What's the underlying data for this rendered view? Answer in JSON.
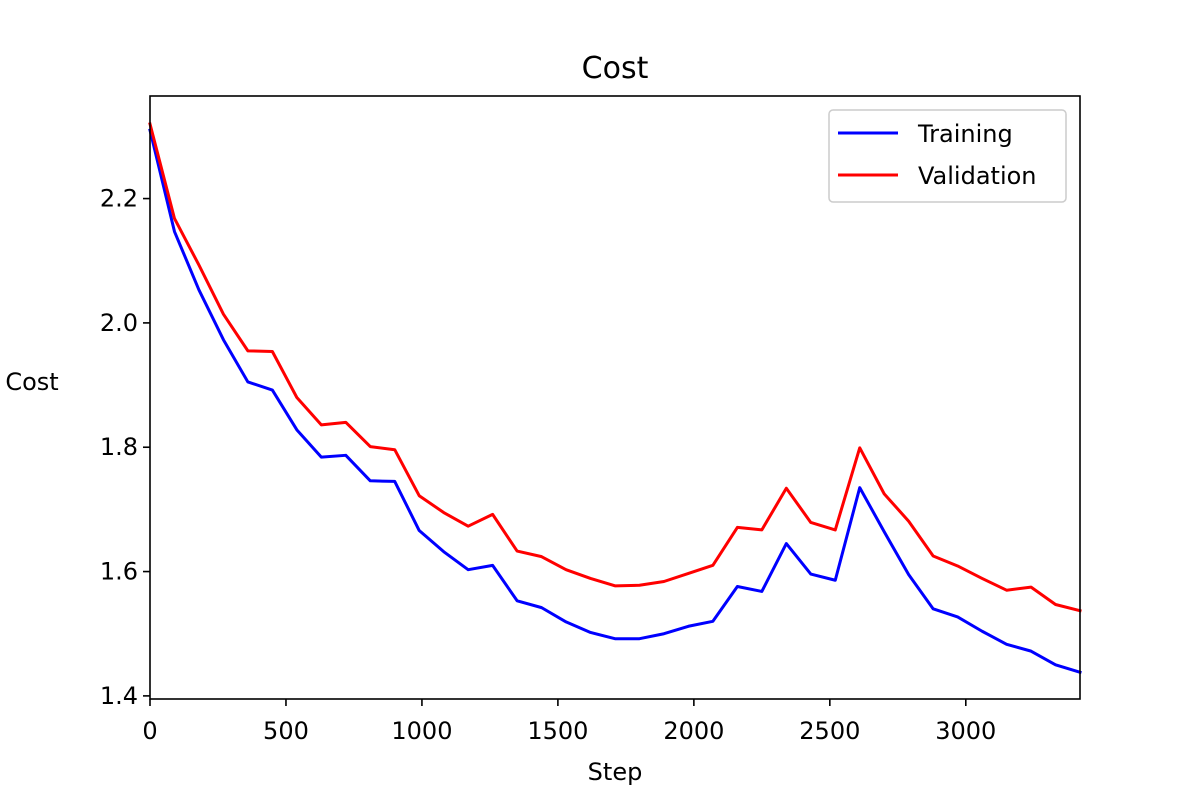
{
  "chart_data": {
    "type": "line",
    "title": "Cost",
    "xlabel": "Step",
    "ylabel": "Cost",
    "xlim": [
      0,
      3420
    ],
    "ylim": [
      1.395,
      2.365
    ],
    "xticks": [
      0,
      500,
      1000,
      1500,
      2000,
      2500,
      3000
    ],
    "yticks": [
      1.4,
      1.6,
      1.8,
      2.0,
      2.2
    ],
    "ytick_labels": [
      "1.4",
      "1.6",
      "1.8",
      "2.0",
      "2.2"
    ],
    "grid": false,
    "legend_position": "top-right",
    "x": [
      0,
      90,
      180,
      270,
      360,
      450,
      540,
      630,
      720,
      810,
      900,
      990,
      1080,
      1170,
      1260,
      1350,
      1440,
      1530,
      1620,
      1710,
      1800,
      1890,
      1980,
      2070,
      2160,
      2250,
      2340,
      2430,
      2520,
      2610,
      2700,
      2790,
      2880,
      2970,
      3060,
      3150,
      3240,
      3330,
      3420
    ],
    "series": [
      {
        "name": "Training",
        "color": "#0000ff",
        "values": [
          2.31,
          2.147,
          2.053,
          1.973,
          1.905,
          1.892,
          1.828,
          1.784,
          1.787,
          1.746,
          1.745,
          1.666,
          1.632,
          1.603,
          1.61,
          1.553,
          1.542,
          1.519,
          1.502,
          1.492,
          1.492,
          1.5,
          1.512,
          1.52,
          1.576,
          1.568,
          1.645,
          1.596,
          1.586,
          1.735,
          1.664,
          1.595,
          1.54,
          1.527,
          1.504,
          1.483,
          1.472,
          1.45,
          1.438
        ]
      },
      {
        "name": "Validation",
        "color": "#ff0000",
        "values": [
          2.32,
          2.168,
          2.093,
          2.014,
          1.955,
          1.954,
          1.88,
          1.836,
          1.84,
          1.801,
          1.796,
          1.722,
          1.695,
          1.673,
          1.692,
          1.633,
          1.624,
          1.603,
          1.589,
          1.577,
          1.578,
          1.584,
          1.597,
          1.61,
          1.671,
          1.667,
          1.734,
          1.679,
          1.667,
          1.799,
          1.725,
          1.681,
          1.625,
          1.609,
          1.589,
          1.57,
          1.575,
          1.547,
          1.537
        ]
      }
    ]
  }
}
